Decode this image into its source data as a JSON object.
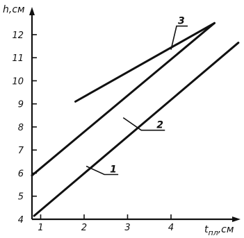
{
  "chart_data": {
    "type": "line",
    "title": "",
    "xlabel": "t",
    "xlabel_sub": "пл",
    "xlabel_unit": ",см",
    "ylabel": "h,см",
    "xlim": [
      0.8,
      5.6
    ],
    "ylim": [
      4,
      13.2
    ],
    "x_ticks": [
      1,
      2,
      3,
      4
    ],
    "y_ticks": [
      4,
      5,
      6,
      7,
      8,
      9,
      10,
      11,
      12
    ],
    "grid": false,
    "series": [
      {
        "name": "1",
        "x": [
          0.85,
          5.55
        ],
        "y": [
          4.15,
          11.65
        ]
      },
      {
        "name": "2",
        "x": [
          0.8,
          5.0
        ],
        "y": [
          5.9,
          12.5
        ]
      },
      {
        "name": "3",
        "x": [
          1.8,
          5.0
        ],
        "y": [
          9.1,
          12.5
        ]
      }
    ],
    "series_label_anchor": [
      {
        "x": 2.05,
        "y": 6.3
      },
      {
        "x": 2.9,
        "y": 8.4
      },
      {
        "x": 4.0,
        "y": 11.35
      }
    ],
    "colors": {
      "ink": "#111111",
      "background": "#ffffff"
    }
  }
}
